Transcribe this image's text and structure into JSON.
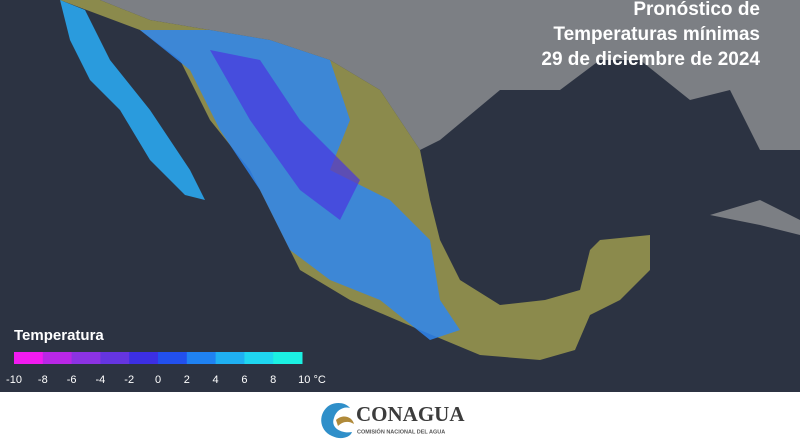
{
  "header": {
    "title": [
      "Pronóstico de",
      "Temperaturas mínimas",
      "29 de diciembre de 2024"
    ]
  },
  "legend": {
    "title": "Temperatura",
    "colors": [
      "#f21bf0",
      "#b927e6",
      "#8c33e3",
      "#6535e0",
      "#3c2fe3",
      "#2250ee",
      "#1f82f2",
      "#1fb0f2",
      "#1fd6f0",
      "#1cf0e2"
    ],
    "ticks": [
      -10,
      -8,
      -6,
      -4,
      -2,
      0,
      2,
      4,
      6,
      8,
      {
        "value": 10,
        "label": "10 °C"
      }
    ]
  },
  "footer": {
    "logo": "CONAGUA",
    "subtitle": "COMISIÓN NACIONAL DEL AGUA"
  }
}
